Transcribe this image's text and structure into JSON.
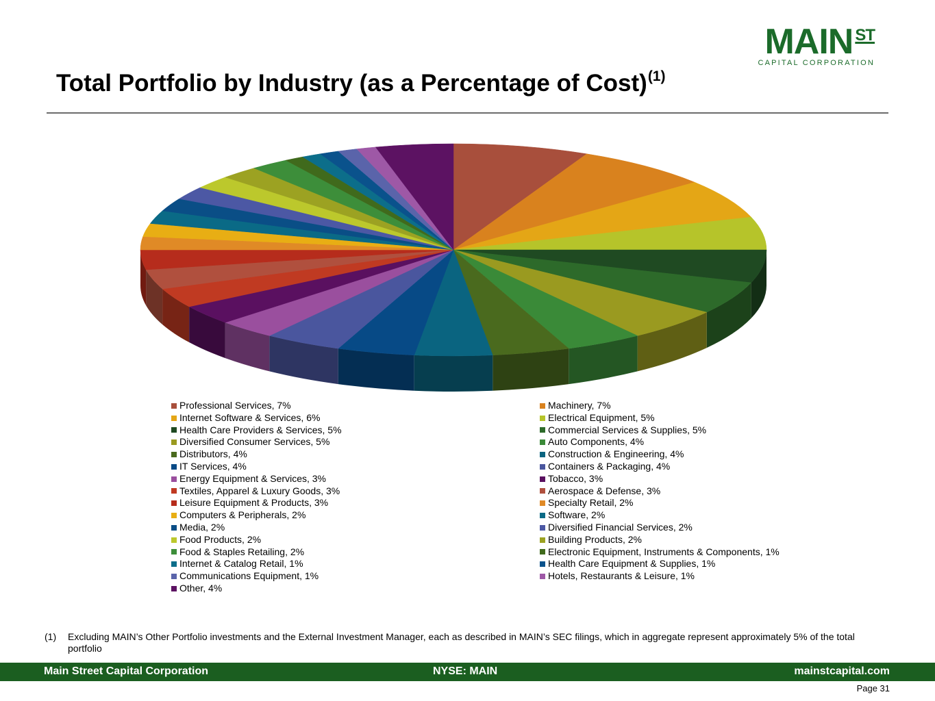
{
  "logo": {
    "main": "MAIN",
    "super": "ST",
    "sub": "CAPITAL CORPORATION"
  },
  "title": {
    "text": "Total Portfolio by Industry (as a Percentage of Cost)",
    "sup": "(1)"
  },
  "chart_data": {
    "type": "pie",
    "title": "Total Portfolio by Industry (as a Percentage of Cost)",
    "legend_position": "bottom",
    "slices": [
      {
        "label": "Professional Services, 7%",
        "name": "Professional Services",
        "value": 7,
        "color": "#a84f3c"
      },
      {
        "label": "Machinery, 7%",
        "name": "Machinery",
        "value": 7,
        "color": "#d9821e"
      },
      {
        "label": "Internet Software & Services, 6%",
        "name": "Internet Software & Services",
        "value": 6,
        "color": "#e4a616"
      },
      {
        "label": "Electrical Equipment, 5%",
        "name": "Electrical Equipment",
        "value": 5,
        "color": "#b6c42a"
      },
      {
        "label": "Health Care Providers & Services, 5%",
        "name": "Health Care Providers & Services",
        "value": 5,
        "color": "#1f4a22"
      },
      {
        "label": "Commercial Services & Supplies, 5%",
        "name": "Commercial Services & Supplies",
        "value": 5,
        "color": "#2d6a2a"
      },
      {
        "label": "Diversified Consumer Services, 5%",
        "name": "Diversified Consumer Services",
        "value": 5,
        "color": "#9a9a20"
      },
      {
        "label": "Auto Components, 4%",
        "name": "Auto Components",
        "value": 4,
        "color": "#3a8a38"
      },
      {
        "label": "Distributors, 4%",
        "name": "Distributors",
        "value": 4,
        "color": "#4a6a1e"
      },
      {
        "label": "Construction & Engineering, 4%",
        "name": "Construction & Engineering",
        "value": 4,
        "color": "#0a6480"
      },
      {
        "label": "IT Services, 4%",
        "name": "IT Services",
        "value": 4,
        "color": "#074a86"
      },
      {
        "label": "Containers & Packaging, 4%",
        "name": "Containers & Packaging",
        "value": 4,
        "color": "#4a569e"
      },
      {
        "label": "Energy Equipment & Services, 3%",
        "name": "Energy Equipment & Services",
        "value": 3,
        "color": "#9a4f9e"
      },
      {
        "label": "Tobacco, 3%",
        "name": "Tobacco",
        "value": 3,
        "color": "#5a1060"
      },
      {
        "label": "Textiles, Apparel & Luxury Goods, 3%",
        "name": "Textiles, Apparel & Luxury Goods",
        "value": 3,
        "color": "#c03a22"
      },
      {
        "label": "Aerospace & Defense, 3%",
        "name": "Aerospace & Defense",
        "value": 3,
        "color": "#b0503e"
      },
      {
        "label": "Leisure Equipment & Products, 3%",
        "name": "Leisure Equipment & Products",
        "value": 3,
        "color": "#b62c1c"
      },
      {
        "label": "Specialty Retail, 2%",
        "name": "Specialty Retail",
        "value": 2,
        "color": "#e08a26"
      },
      {
        "label": "Computers & Peripherals, 2%",
        "name": "Computers & Peripherals",
        "value": 2,
        "color": "#e8ae14"
      },
      {
        "label": "Software, 2%",
        "name": "Software",
        "value": 2,
        "color": "#0a6a86"
      },
      {
        "label": "Media, 2%",
        "name": "Media",
        "value": 2,
        "color": "#0a4e86"
      },
      {
        "label": "Diversified Financial Services, 2%",
        "name": "Diversified Financial Services",
        "value": 2,
        "color": "#4c58a4"
      },
      {
        "label": "Food Products, 2%",
        "name": "Food Products",
        "value": 2,
        "color": "#bcc82c"
      },
      {
        "label": "Building Products, 2%",
        "name": "Building Products",
        "value": 2,
        "color": "#9ca222"
      },
      {
        "label": "Food & Staples Retailing, 2%",
        "name": "Food & Staples Retailing",
        "value": 2,
        "color": "#3d8e3a"
      },
      {
        "label": "Electronic Equipment, Instruments & Components, 1%",
        "name": "Electronic Equipment, Instruments & Components",
        "value": 1,
        "color": "#406a1c"
      },
      {
        "label": "Internet & Catalog Retail, 1%",
        "name": "Internet & Catalog Retail",
        "value": 1,
        "color": "#0c6e8a"
      },
      {
        "label": "Health Care Equipment & Supplies, 1%",
        "name": "Health Care Equipment & Supplies",
        "value": 1,
        "color": "#0a528c"
      },
      {
        "label": "Communications Equipment, 1%",
        "name": "Communications Equipment",
        "value": 1,
        "color": "#5a64aa"
      },
      {
        "label": "Hotels, Restaurants & Leisure, 1%",
        "name": "Hotels, Restaurants & Leisure",
        "value": 1,
        "color": "#9e58a6"
      },
      {
        "label": "Other, 4%",
        "name": "Other",
        "value": 4,
        "color": "#5c1262"
      }
    ]
  },
  "footnote": {
    "marker": "(1)",
    "text": "Excluding MAIN’s Other Portfolio investments and the External Investment Manager, each as described in MAIN’s SEC filings, which in aggregate represent approximately 5% of the total portfolio"
  },
  "footer": {
    "left": "Main Street Capital Corporation",
    "center": "NYSE: MAIN",
    "right": "mainstcapital.com"
  },
  "page": "Page  31"
}
